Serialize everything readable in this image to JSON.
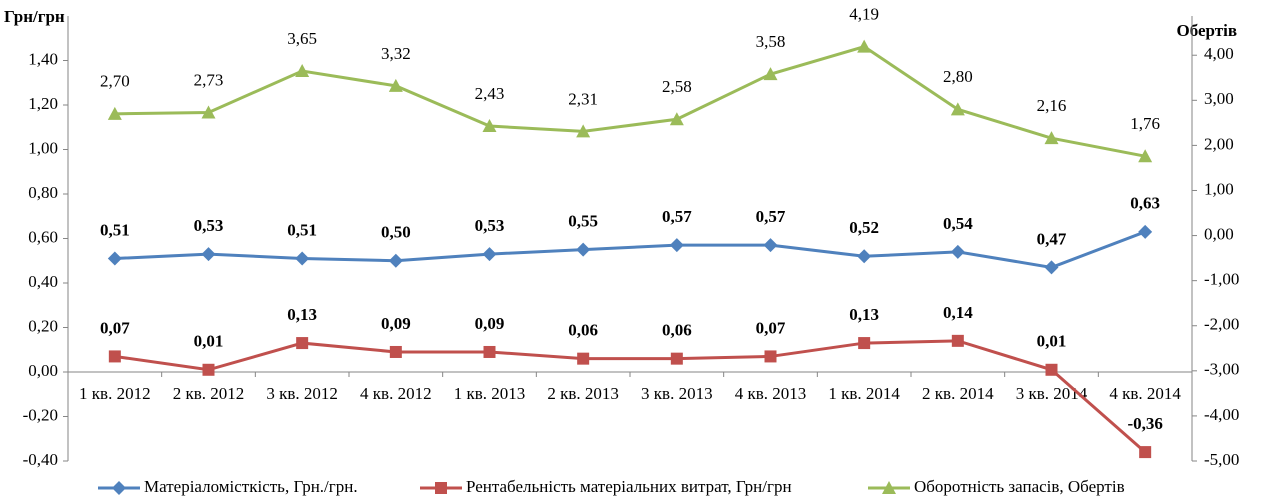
{
  "chart_data": {
    "type": "line",
    "y_label": "Грн/грн",
    "y2_label": "Обертів",
    "categories": [
      "1 кв. 2012",
      "2 кв. 2012",
      "3 кв. 2012",
      "4 кв. 2012",
      "1 кв. 2013",
      "2 кв. 2013",
      "3 кв. 2013",
      "4 кв. 2013",
      "1 кв. 2014",
      "2 кв. 2014",
      "3 кв. 2014",
      "4 кв. 2014"
    ],
    "series": [
      {
        "name": "Матеріаломісткість, Грн./грн.",
        "color": "#4f81bd",
        "marker": "diamond",
        "axis": "y",
        "values": [
          0.51,
          0.53,
          0.51,
          0.5,
          0.53,
          0.55,
          0.57,
          0.57,
          0.52,
          0.54,
          0.47,
          0.63
        ],
        "value_labels": [
          "0,51",
          "0,53",
          "0,51",
          "0,50",
          "0,53",
          "0,55",
          "0,57",
          "0,57",
          "0,52",
          "0,54",
          "0,47",
          "0,63"
        ]
      },
      {
        "name": "Рентабельність матеріальних витрат, Грн/грн",
        "color": "#c0504d",
        "marker": "square",
        "axis": "y",
        "values": [
          0.07,
          0.01,
          0.13,
          0.09,
          0.09,
          0.06,
          0.06,
          0.07,
          0.13,
          0.14,
          0.01,
          -0.36
        ],
        "value_labels": [
          "0,07",
          "0,01",
          "0,13",
          "0,09",
          "0,09",
          "0,06",
          "0,06",
          "0,07",
          "0,13",
          "0,14",
          "0,01",
          "-0,36"
        ]
      },
      {
        "name": "Оборотність запасів, Обертів",
        "color": "#9bbb59",
        "marker": "triangle",
        "axis": "y2",
        "values": [
          2.7,
          2.73,
          3.65,
          3.32,
          2.43,
          2.31,
          2.58,
          3.58,
          4.19,
          2.8,
          2.16,
          1.76
        ],
        "value_labels": [
          "2,70",
          "2,73",
          "3,65",
          "3,32",
          "2,43",
          "2,31",
          "2,58",
          "3,58",
          "4,19",
          "2,80",
          "2,16",
          "1,76"
        ]
      }
    ],
    "ylim": [
      -0.4,
      1.6
    ],
    "yticks": [
      {
        "value": -0.4,
        "label": "-0,40"
      },
      {
        "value": -0.2,
        "label": "-0,20"
      },
      {
        "value": 0,
        "label": "0,00"
      },
      {
        "value": 0.2,
        "label": "0,20"
      },
      {
        "value": 0.4,
        "label": "0,40"
      },
      {
        "value": 0.6,
        "label": "0,60"
      },
      {
        "value": 0.8,
        "label": "0,80"
      },
      {
        "value": 1.0,
        "label": "1,00"
      },
      {
        "value": 1.2,
        "label": "1,20"
      },
      {
        "value": 1.4,
        "label": "1,40"
      }
    ],
    "y2lim": [
      -5,
      4.87
    ],
    "y2ticks": [
      {
        "value": -5,
        "label": "-5,00"
      },
      {
        "value": -4,
        "label": "-4,00"
      },
      {
        "value": -3,
        "label": "-3,00"
      },
      {
        "value": -2,
        "label": "-2,00"
      },
      {
        "value": -1,
        "label": "-1,00"
      },
      {
        "value": 0,
        "label": "0,00"
      },
      {
        "value": 1,
        "label": "1,00"
      },
      {
        "value": 2,
        "label": "2,00"
      },
      {
        "value": 3,
        "label": "3,00"
      },
      {
        "value": 4,
        "label": "4,00"
      }
    ],
    "grid": false,
    "legend": "bottom"
  }
}
